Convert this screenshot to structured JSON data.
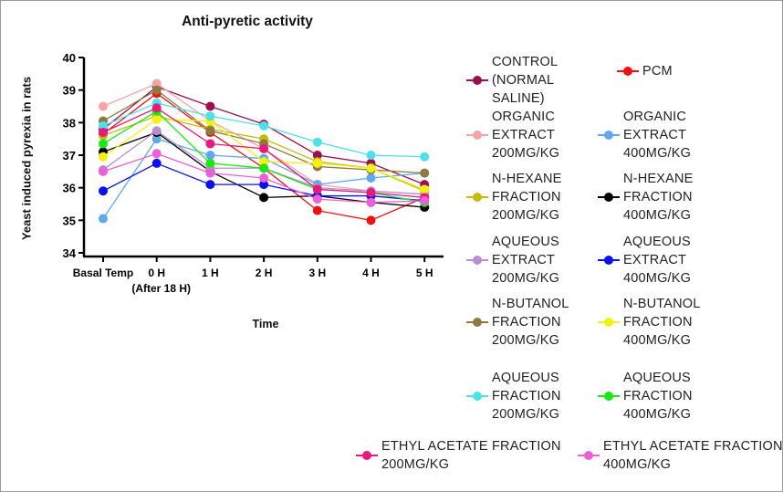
{
  "chart_data": {
    "type": "line",
    "title": "Anti-pyretic activity",
    "xlabel": "Time",
    "ylabel": "Yeast induced pyrexia in rats",
    "categories": [
      "Basal Temp",
      "0 H (After 18 H)",
      "1 H",
      "2 H",
      "3 H",
      "4 H",
      "5 H"
    ],
    "ylim": [
      34,
      40
    ],
    "yticks": [
      34,
      35,
      36,
      37,
      38,
      39,
      40
    ],
    "grid": false,
    "legend_position": "right",
    "series": [
      {
        "name": "CONTROL (NORMAL SALINE)",
        "color": "#9b1050",
        "values": [
          37.8,
          39.1,
          38.5,
          37.95,
          37.0,
          36.75,
          36.1
        ]
      },
      {
        "name": "PCM",
        "color": "#f01010",
        "values": [
          37.65,
          38.9,
          37.7,
          36.6,
          35.3,
          35.0,
          35.7
        ]
      },
      {
        "name": "ORGANIC EXTRACT 200MG/KG",
        "color": "#f4a6a6",
        "values": [
          38.5,
          39.2,
          38.05,
          37.2,
          36.1,
          35.9,
          35.8
        ]
      },
      {
        "name": "ORGANIC EXTRACT 400MG/KG",
        "color": "#62a8ee",
        "values": [
          35.05,
          37.5,
          37.0,
          36.9,
          36.1,
          36.3,
          36.45
        ]
      },
      {
        "name": "N-HEXANE FRACTION 200MG/KG",
        "color": "#c2bc10",
        "values": [
          37.6,
          38.2,
          37.8,
          37.5,
          36.8,
          36.6,
          35.9
        ]
      },
      {
        "name": "N-HEXANE FRACTION 400MG/KG",
        "color": "#000000",
        "values": [
          37.1,
          37.7,
          36.5,
          35.7,
          35.75,
          35.55,
          35.4
        ]
      },
      {
        "name": "AQUEOUS EXTRACT 200MG/KG",
        "color": "#b88ed0",
        "values": [
          36.55,
          37.75,
          36.6,
          36.6,
          36.0,
          35.9,
          35.8
        ]
      },
      {
        "name": "AQUEOUS EXTRACT 400MG/KG",
        "color": "#0a10f0",
        "values": [
          35.9,
          36.75,
          36.1,
          36.1,
          35.75,
          35.75,
          35.6
        ]
      },
      {
        "name": "N-BUTANOL FRACTION 200MG/KG",
        "color": "#8e7a40",
        "values": [
          38.05,
          39.0,
          37.75,
          37.35,
          36.65,
          36.55,
          36.45
        ]
      },
      {
        "name": "N-BUTANOL FRACTION 400MG/KG",
        "color": "#f4f010",
        "values": [
          36.95,
          38.1,
          38.05,
          36.8,
          36.75,
          36.6,
          35.95
        ]
      },
      {
        "name": "AQUEOUS FRACTION 200MG/KG",
        "color": "#4ee0ea",
        "values": [
          37.9,
          38.6,
          38.2,
          37.9,
          37.4,
          37.0,
          36.95
        ]
      },
      {
        "name": "AQUEOUS FRACTION 400MG/KG",
        "color": "#18e818",
        "values": [
          37.35,
          38.35,
          36.75,
          36.6,
          35.95,
          35.85,
          35.55
        ]
      },
      {
        "name": "ETHYL ACETATE FRACTION 200MG/KG",
        "color": "#e8187e",
        "values": [
          37.7,
          38.45,
          37.35,
          37.2,
          35.95,
          35.85,
          35.7
        ]
      },
      {
        "name": "ETHYL ACETATE FRACTION 400MG/KG",
        "color": "#ec60d8",
        "values": [
          36.5,
          37.05,
          36.45,
          36.3,
          35.65,
          35.55,
          35.6
        ]
      }
    ]
  }
}
